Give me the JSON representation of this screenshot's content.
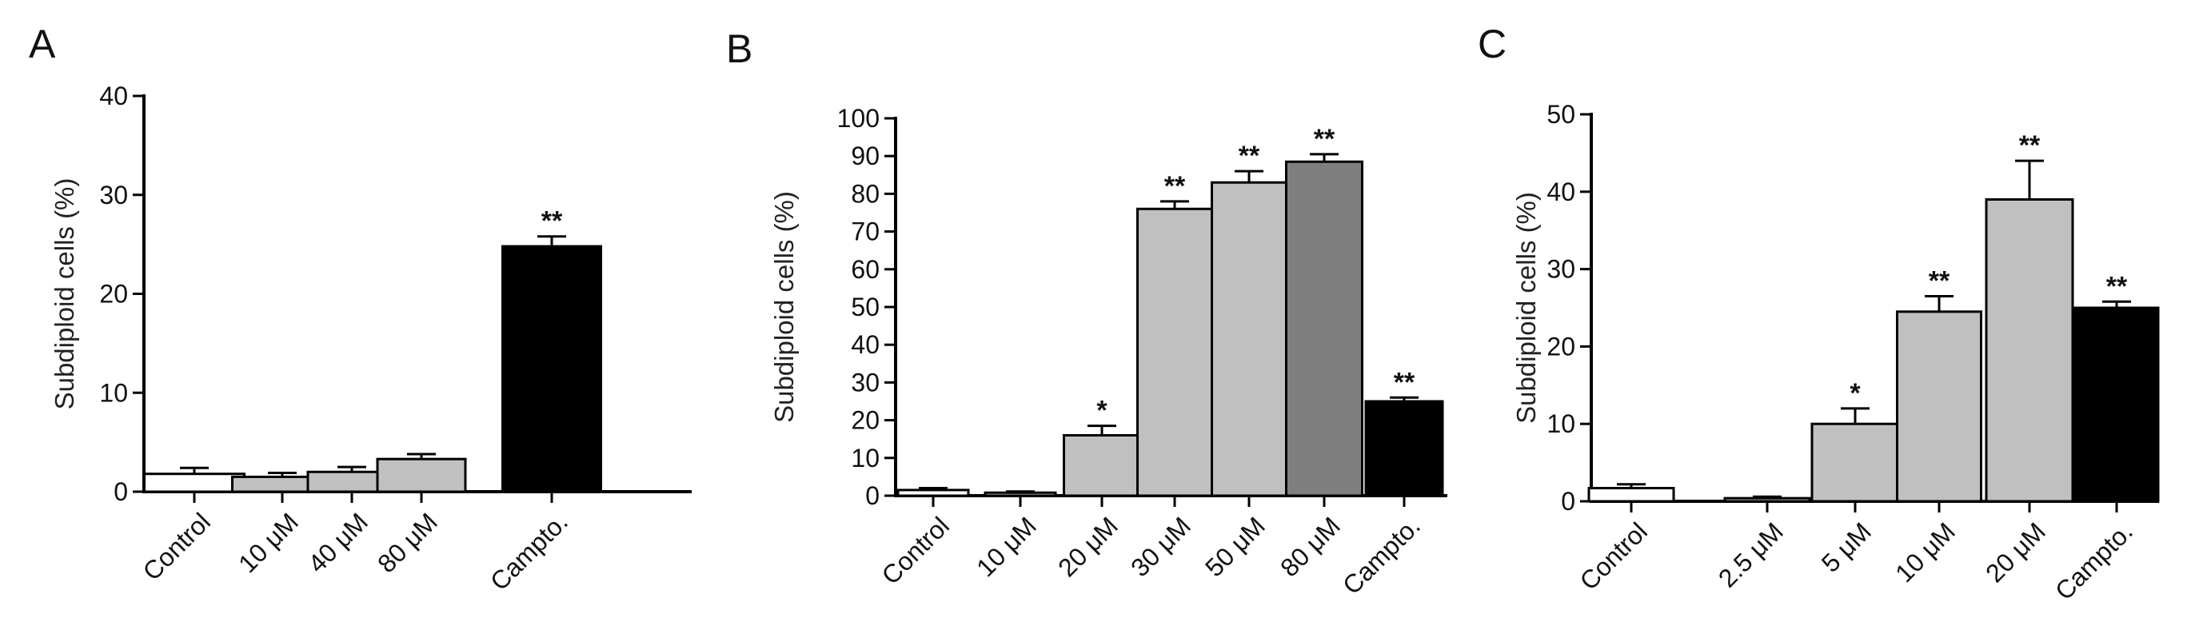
{
  "chart_data": [
    {
      "type": "bar",
      "panel": "A",
      "ylabel": "Subdiploid cells (%)",
      "ylim": [
        0,
        40
      ],
      "yticks": [
        0,
        10,
        20,
        30,
        40
      ],
      "categories": [
        "Control",
        "10 μM",
        "40 μM",
        "80 μM",
        "Campto."
      ],
      "values": [
        1.8,
        1.5,
        2.0,
        3.3,
        24.8
      ],
      "errors": [
        0.6,
        0.4,
        0.5,
        0.5,
        1.0
      ],
      "significance": [
        "",
        "",
        "",
        "",
        "**"
      ],
      "colors": [
        "#ffffff",
        "#c0c0c0",
        "#c0c0c0",
        "#c0c0c0",
        "#000000"
      ]
    },
    {
      "type": "bar",
      "panel": "B",
      "ylabel": "Subdiploid cells (%)",
      "ylim": [
        0,
        100
      ],
      "yticks": [
        0,
        10,
        20,
        30,
        40,
        50,
        60,
        70,
        80,
        90,
        100
      ],
      "categories": [
        "Control",
        "10 μM",
        "20 μM",
        "30 μM",
        "50 μM",
        "80 μM",
        "Campto."
      ],
      "values": [
        1.5,
        0.8,
        16,
        76,
        83,
        88.5,
        25
      ],
      "errors": [
        0.5,
        0.3,
        2.5,
        2,
        3,
        2,
        1
      ],
      "significance": [
        "",
        "",
        "*",
        "**",
        "**",
        "**",
        "**"
      ],
      "colors": [
        "#ffffff",
        "#c0c0c0",
        "#c0c0c0",
        "#c0c0c0",
        "#c0c0c0",
        "#7f7f7f",
        "#000000"
      ]
    },
    {
      "type": "bar",
      "panel": "C",
      "ylabel": "Subdiploid cells (%)",
      "ylim": [
        0,
        50
      ],
      "yticks": [
        0,
        10,
        20,
        30,
        40,
        50
      ],
      "categories": [
        "Control",
        "2.5 μM",
        "5 μM",
        "10 μM",
        "20 μM",
        "Campto."
      ],
      "values": [
        1.7,
        0.4,
        10,
        24.5,
        39,
        25
      ],
      "errors": [
        0.5,
        0.2,
        2,
        2,
        5,
        0.8
      ],
      "significance": [
        "",
        "",
        "*",
        "**",
        "**",
        "**"
      ],
      "colors": [
        "#ffffff",
        "#c0c0c0",
        "#c0c0c0",
        "#c0c0c0",
        "#c0c0c0",
        "#000000"
      ]
    }
  ]
}
